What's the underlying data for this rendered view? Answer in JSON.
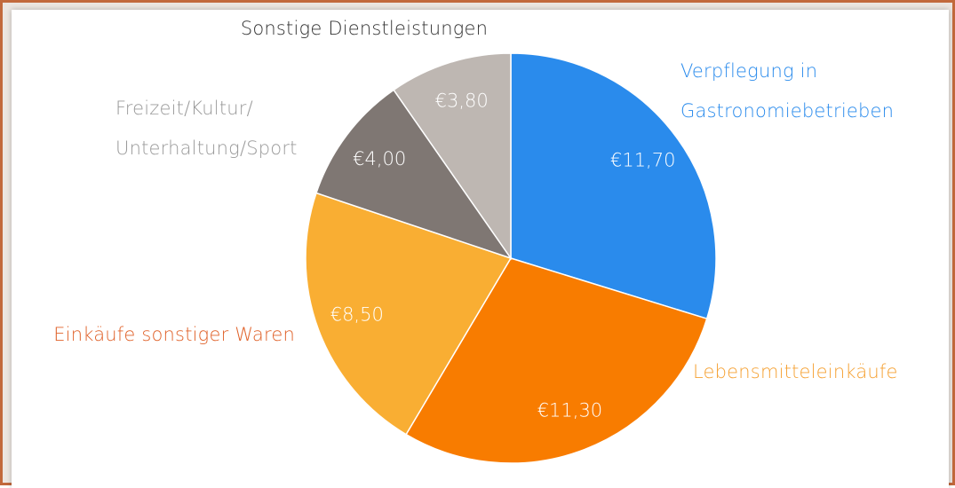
{
  "chart_data": {
    "type": "pie",
    "categories": [
      "Verpflegung in Gastronomiebetrieben",
      "Lebensmitteleinkäufe",
      "Einkäufe sonstiger Waren",
      "Freizeit/Kultur/ Unterhaltung/Sport",
      "Sonstige Dienstleistungen"
    ],
    "values": [
      11.7,
      11.3,
      8.5,
      4.0,
      3.8
    ],
    "value_labels": [
      "€11,70",
      "€11,30",
      "€8,50",
      "€4,00",
      "€3,80"
    ],
    "colors": [
      "#2a8bec",
      "#f87c00",
      "#f9ae33",
      "#7f7773",
      "#beb7b2"
    ],
    "label_colors": [
      "#2a8bec",
      "#f5a133",
      "#e0622a",
      "#9a9a9a",
      "#333333"
    ]
  }
}
